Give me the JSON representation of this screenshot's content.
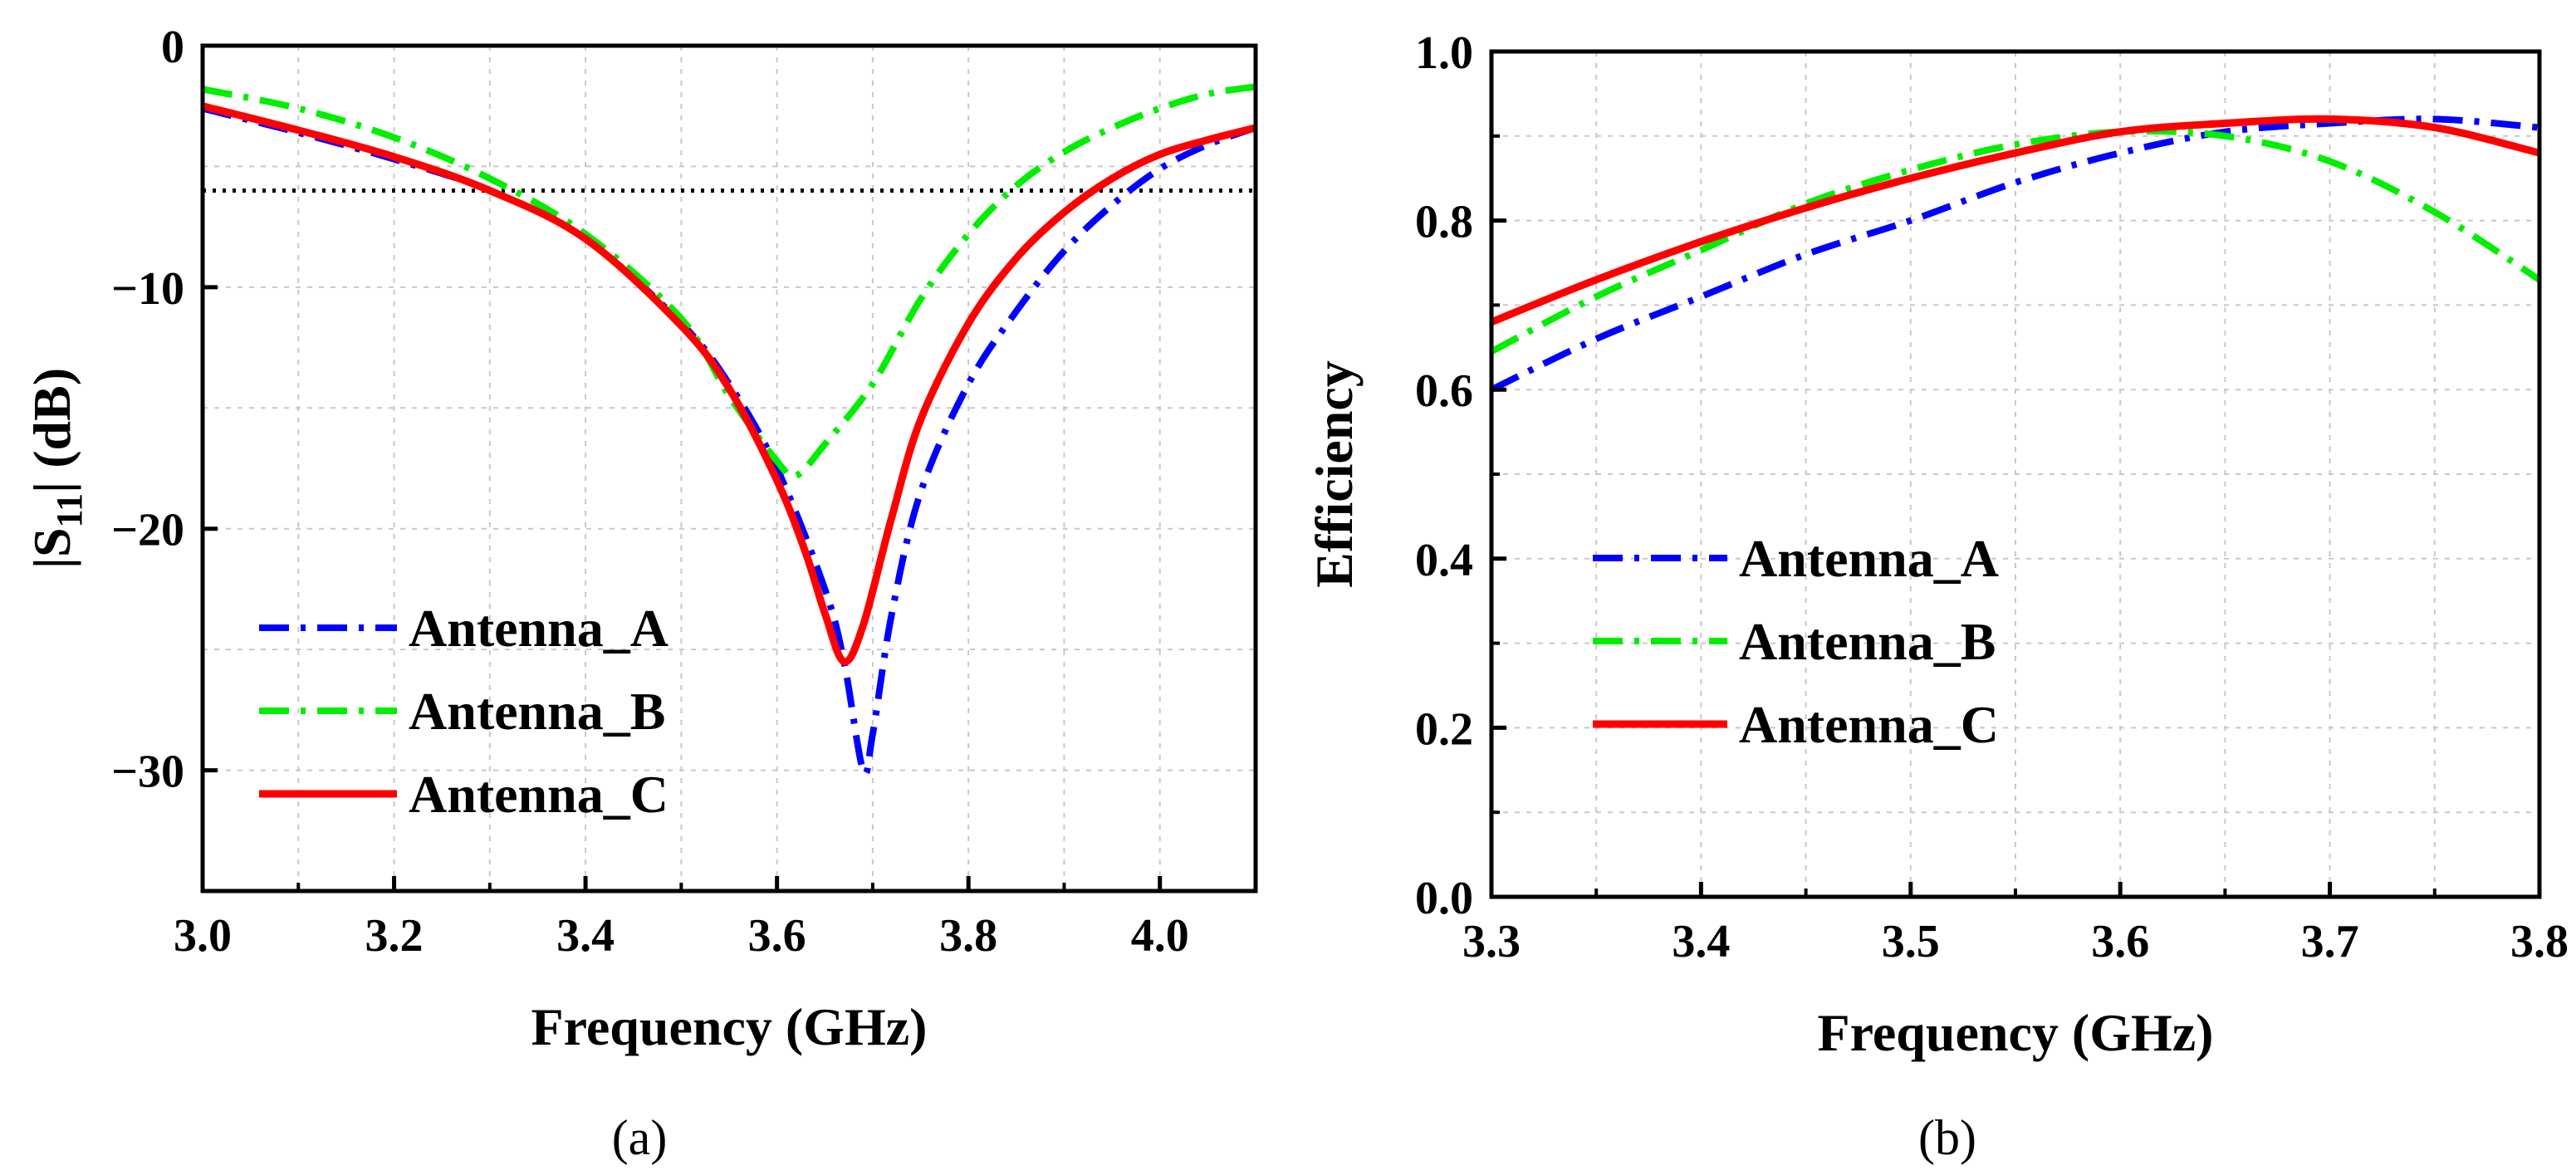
{
  "colors": {
    "Antenna_A": "#0000ff",
    "Antenna_B": "#00ee00",
    "Antenna_C": "#ff0000",
    "reference": "#000000"
  },
  "chart_data": [
    {
      "type": "line",
      "panel_label": "(a)",
      "xlabel": "Frequency (GHz)",
      "ylabel": "|S11| (dB)",
      "ylabel_parts": {
        "prefix": "|S",
        "subscript": "11",
        "suffix": "| (dB)"
      },
      "xlim": [
        3.0,
        4.1
      ],
      "ylim": [
        -35,
        0
      ],
      "xticks": [
        3.0,
        3.2,
        3.4,
        3.6,
        3.8,
        4.0
      ],
      "xtick_labels": [
        "3.0",
        "3.2",
        "3.4",
        "3.6",
        "3.8",
        "4.0"
      ],
      "yticks": [
        0,
        -10,
        -20,
        -30
      ],
      "ytick_labels": [
        "0",
        "−10",
        "−20",
        "−30"
      ],
      "grid": true,
      "legend_position": "bottom-left",
      "reference_line": {
        "y": -6,
        "style": "dotted"
      },
      "series": [
        {
          "name": "Antenna_A",
          "style": "dashdot",
          "x": [
            3.0,
            3.1,
            3.2,
            3.3,
            3.4,
            3.5,
            3.55,
            3.6,
            3.65,
            3.67,
            3.69,
            3.7,
            3.72,
            3.75,
            3.8,
            3.85,
            3.9,
            3.95,
            4.0,
            4.05,
            4.1
          ],
          "y": [
            -2.6,
            -3.6,
            -4.7,
            -6.0,
            -8.0,
            -11.5,
            -14.0,
            -17.5,
            -22.5,
            -25.5,
            -30.0,
            -28.5,
            -23.5,
            -18.5,
            -14.0,
            -11.0,
            -8.5,
            -6.6,
            -5.1,
            -4.1,
            -3.4
          ]
        },
        {
          "name": "Antenna_B",
          "style": "dashdot",
          "x": [
            3.0,
            3.1,
            3.2,
            3.3,
            3.4,
            3.5,
            3.55,
            3.6,
            3.62,
            3.65,
            3.7,
            3.75,
            3.8,
            3.85,
            3.9,
            3.95,
            4.0,
            4.05,
            4.1
          ],
          "y": [
            -1.8,
            -2.6,
            -3.8,
            -5.5,
            -7.8,
            -11.3,
            -14.5,
            -17.2,
            -17.8,
            -16.5,
            -14.0,
            -10.5,
            -7.8,
            -5.8,
            -4.4,
            -3.4,
            -2.6,
            -2.0,
            -1.7
          ]
        },
        {
          "name": "Antenna_C",
          "style": "solid",
          "x": [
            3.0,
            3.1,
            3.2,
            3.3,
            3.4,
            3.5,
            3.55,
            3.6,
            3.63,
            3.65,
            3.67,
            3.69,
            3.72,
            3.75,
            3.8,
            3.85,
            3.9,
            3.95,
            4.0,
            4.05,
            4.1
          ],
          "y": [
            -2.5,
            -3.5,
            -4.6,
            -6.0,
            -8.0,
            -11.6,
            -14.2,
            -18.0,
            -21.0,
            -23.5,
            -25.5,
            -24.0,
            -19.5,
            -15.5,
            -11.5,
            -8.8,
            -6.9,
            -5.5,
            -4.5,
            -3.9,
            -3.4
          ]
        }
      ]
    },
    {
      "type": "line",
      "panel_label": "(b)",
      "xlabel": "Frequency (GHz)",
      "ylabel": "Efficiency",
      "xlim": [
        3.3,
        3.8
      ],
      "ylim": [
        0.0,
        1.0
      ],
      "xticks": [
        3.3,
        3.4,
        3.5,
        3.6,
        3.7,
        3.8
      ],
      "xtick_labels": [
        "3.3",
        "3.4",
        "3.5",
        "3.6",
        "3.7",
        "3.8"
      ],
      "yticks": [
        0.0,
        0.2,
        0.4,
        0.6,
        0.8,
        1.0
      ],
      "ytick_labels": [
        "0.0",
        "0.2",
        "0.4",
        "0.6",
        "0.8",
        "1.0"
      ],
      "grid": true,
      "legend_position": "middle-left",
      "series": [
        {
          "name": "Antenna_A",
          "style": "dashdot",
          "x": [
            3.3,
            3.35,
            3.4,
            3.45,
            3.5,
            3.55,
            3.6,
            3.65,
            3.7,
            3.75,
            3.8
          ],
          "y": [
            0.6,
            0.66,
            0.71,
            0.76,
            0.8,
            0.845,
            0.88,
            0.905,
            0.915,
            0.92,
            0.91
          ]
        },
        {
          "name": "Antenna_B",
          "style": "dashdot",
          "x": [
            3.3,
            3.35,
            3.4,
            3.45,
            3.5,
            3.55,
            3.6,
            3.65,
            3.7,
            3.75,
            3.8
          ],
          "y": [
            0.645,
            0.71,
            0.765,
            0.82,
            0.86,
            0.89,
            0.905,
            0.9,
            0.87,
            0.81,
            0.73
          ]
        },
        {
          "name": "Antenna_C",
          "style": "solid",
          "x": [
            3.3,
            3.35,
            3.4,
            3.45,
            3.5,
            3.55,
            3.6,
            3.65,
            3.7,
            3.75,
            3.8
          ],
          "y": [
            0.68,
            0.73,
            0.775,
            0.815,
            0.85,
            0.88,
            0.905,
            0.915,
            0.92,
            0.91,
            0.88
          ]
        }
      ]
    }
  ]
}
